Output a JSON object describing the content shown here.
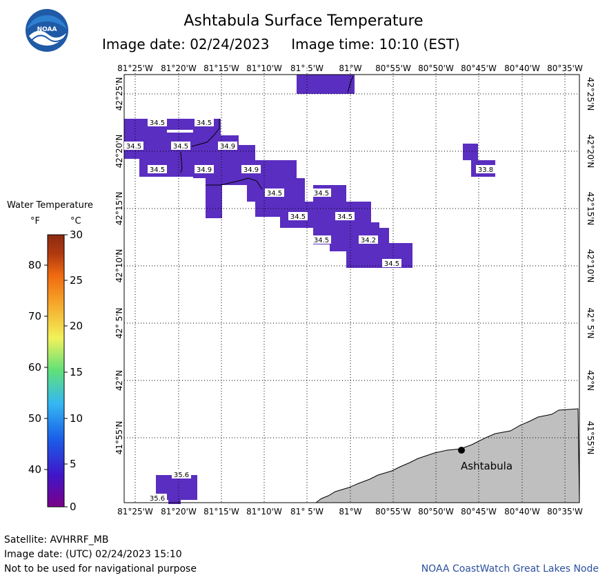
{
  "header": {
    "title": "Ashtabula Surface Temperature",
    "image_date_text": "Image date: 02/24/2023",
    "image_time_text": "Image time: 10:10 (EST)",
    "logo_text": "NOAA"
  },
  "map": {
    "lon_labels": [
      "81°25'W",
      "81°20'W",
      "81°15'W",
      "81°10'W",
      "81° 5'W",
      "81°W",
      "80°55'W",
      "80°50'W",
      "80°45'W",
      "80°40'W",
      "80°35'W"
    ],
    "lat_labels": [
      "42°25'N",
      "42°20'N",
      "42°15'N",
      "42°10'N",
      "42° 5'N",
      "42°N",
      "41°55'N"
    ],
    "city": "Ashtabula",
    "water_color": "#5a2ec0",
    "land_color": "#bfbfbf",
    "temperature_labels": [
      "34.5",
      "34.5",
      "34.5",
      "34.5",
      "34.9",
      "34.5",
      "34.9",
      "34.9",
      "34.5",
      "34.5",
      "34.5",
      "34.5",
      "34.5",
      "34.2",
      "34.5",
      "33.8",
      "35.6",
      "35.6"
    ]
  },
  "legend": {
    "title": "Water Temperature",
    "unit_f": "°F",
    "unit_c": "°C",
    "f_ticks": [
      "80",
      "70",
      "60",
      "50",
      "40"
    ],
    "c_ticks": [
      "30",
      "25",
      "20",
      "15",
      "10",
      "5",
      "0"
    ],
    "colors": [
      "#7a0089",
      "#3f17c9",
      "#1a5fe8",
      "#35b8f2",
      "#5fe07a",
      "#f2f25a",
      "#f5a52a",
      "#f06a10",
      "#b03a10",
      "#8b2a12"
    ]
  },
  "footer": {
    "satellite": "Satellite: AVHRRF_MB",
    "utc_date": "Image date: (UTC) 02/24/2023  15:10",
    "disclaimer": "Not to be used for navigational purpose",
    "credit": "NOAA CoastWatch Great Lakes Node"
  }
}
